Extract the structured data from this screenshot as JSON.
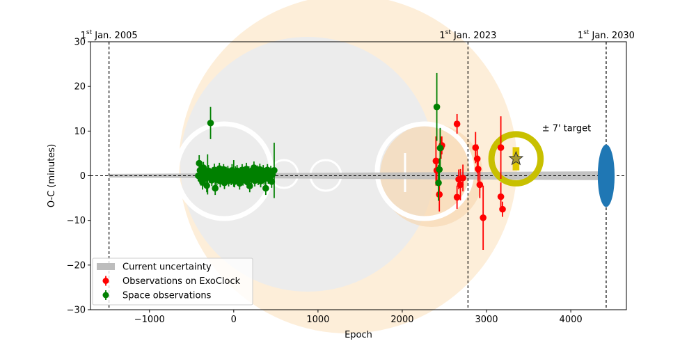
{
  "chart_data": {
    "type": "scatter",
    "xlabel": "Epoch",
    "ylabel": "O-C (minutes)",
    "xlim": [
      -1700,
      4660
    ],
    "ylim": [
      -30,
      30
    ],
    "x_ticks": [
      -1000,
      0,
      1000,
      2000,
      3000,
      4000
    ],
    "x_tick_labels": [
      "−1000",
      "0",
      "1000",
      "2000",
      "3000",
      "4000"
    ],
    "y_ticks": [
      -30,
      -20,
      -10,
      0,
      10,
      20,
      30
    ],
    "y_tick_labels": [
      "−30",
      "−20",
      "−10",
      "0",
      "10",
      "20",
      "30"
    ],
    "date_markers": [
      {
        "epoch": -1480,
        "pre": "1",
        "sup": "st",
        "post": " Jan. 2005"
      },
      {
        "epoch": 2780,
        "pre": "1",
        "sup": "st",
        "post": " Jan. 2023"
      },
      {
        "epoch": 4420,
        "pre": "1",
        "sup": "st",
        "post": " Jan. 2030"
      }
    ],
    "zero_line": true,
    "legend_position": "lower-left",
    "legend": [
      {
        "label": "Current uncertainty",
        "kind": "band",
        "color": "#bdbdbd"
      },
      {
        "label": "Observations on ExoClock",
        "kind": "errorbar",
        "color": "#ff0000"
      },
      {
        "label": "Space observations",
        "kind": "errorbar",
        "color": "#008000"
      }
    ],
    "uncertainty_band": {
      "x": [
        -1480,
        4420
      ],
      "half_width": [
        0.4,
        1.0
      ],
      "color": "#bdbdbd"
    },
    "future_ellipse": {
      "x": 4420,
      "y": 0,
      "half_width_x": 100,
      "half_height_y": 7,
      "color": "#1f77b4"
    },
    "target": {
      "x": 3350,
      "y": 3.8,
      "ring_radius_y": 5.5,
      "label": "± 7' target",
      "ring_color": "#c8c000",
      "star_color": "#a89a2e",
      "rect_half_width_x": 40,
      "rect_half_height_y": 2.6,
      "rect_color": "#e0c800"
    },
    "series": [
      {
        "name": "Observations on ExoClock",
        "color": "#ff0000",
        "points": [
          [
            2400,
            3.3,
            5.5
          ],
          [
            2410,
            1.2,
            2.8
          ],
          [
            2440,
            -4.2,
            3.8
          ],
          [
            2460,
            6.3,
            2.5
          ],
          [
            2470,
            6.8,
            2.0
          ],
          [
            2650,
            11.6,
            2.2
          ],
          [
            2650,
            -4.8,
            2.6
          ],
          [
            2670,
            -0.8,
            2.2
          ],
          [
            2690,
            -2.0,
            3.5
          ],
          [
            2720,
            -0.5,
            3.0
          ],
          [
            2870,
            6.3,
            3.5
          ],
          [
            2890,
            3.8,
            3.2
          ],
          [
            2900,
            1.5,
            2.8
          ],
          [
            2920,
            -2.0,
            3.0
          ],
          [
            2960,
            -9.4,
            7.2
          ],
          [
            3170,
            6.3,
            7.0
          ],
          [
            3170,
            -4.7,
            3.2
          ],
          [
            3190,
            -7.5,
            1.7
          ]
        ]
      },
      {
        "name": "Space observations",
        "color": "#008000",
        "points": [
          [
            -420,
            0.0,
            1.2
          ],
          [
            -410,
            2.8,
            1.8
          ],
          [
            -400,
            1.2,
            1.5
          ],
          [
            -390,
            -0.8,
            1.4
          ],
          [
            -380,
            0.5,
            1.2
          ],
          [
            -370,
            -1.5,
            1.6
          ],
          [
            -360,
            1.8,
            1.3
          ],
          [
            -350,
            0.2,
            1.1
          ],
          [
            -340,
            -0.6,
            1.4
          ],
          [
            -330,
            0.9,
            1.2
          ],
          [
            -320,
            -2.2,
            1.5
          ],
          [
            -310,
            0.3,
            4.5
          ],
          [
            -300,
            1.1,
            1.3
          ],
          [
            -290,
            -0.4,
            1.2
          ],
          [
            -280,
            0.6,
            1.1
          ],
          [
            -275,
            11.8,
            3.6
          ],
          [
            -260,
            -1.0,
            1.3
          ],
          [
            -250,
            0.7,
            1.2
          ],
          [
            -240,
            -0.2,
            1.1
          ],
          [
            -230,
            1.3,
            1.4
          ],
          [
            -220,
            -2.8,
            1.5
          ],
          [
            -210,
            0.4,
            1.2
          ],
          [
            -200,
            -0.9,
            1.3
          ],
          [
            -190,
            0.8,
            1.1
          ],
          [
            -180,
            -0.3,
            1.2
          ],
          [
            -170,
            1.6,
            1.3
          ],
          [
            -160,
            -1.2,
            1.4
          ],
          [
            -150,
            0.1,
            1.1
          ],
          [
            -140,
            0.9,
            1.2
          ],
          [
            -130,
            -0.7,
            1.3
          ],
          [
            -120,
            1.4,
            1.2
          ],
          [
            -110,
            -1.6,
            1.4
          ],
          [
            -100,
            0.3,
            1.1
          ],
          [
            -90,
            0.8,
            1.2
          ],
          [
            -80,
            -0.5,
            1.3
          ],
          [
            -70,
            1.0,
            1.2
          ],
          [
            -60,
            -1.1,
            1.3
          ],
          [
            -50,
            0.2,
            1.1
          ],
          [
            -40,
            0.6,
            1.2
          ],
          [
            -30,
            -0.8,
            1.3
          ],
          [
            -20,
            1.2,
            1.4
          ],
          [
            -10,
            -0.4,
            1.2
          ],
          [
            0,
            0.5,
            3.0
          ],
          [
            10,
            -1.3,
            1.3
          ],
          [
            20,
            0.9,
            1.2
          ],
          [
            30,
            -0.2,
            1.1
          ],
          [
            40,
            1.1,
            1.3
          ],
          [
            50,
            -0.9,
            1.2
          ],
          [
            60,
            0.4,
            1.1
          ],
          [
            70,
            -1.7,
            1.4
          ],
          [
            80,
            0.7,
            1.2
          ],
          [
            90,
            -0.3,
            1.1
          ],
          [
            100,
            1.3,
            1.3
          ],
          [
            110,
            -1.0,
            1.2
          ],
          [
            120,
            0.2,
            1.1
          ],
          [
            130,
            0.8,
            1.2
          ],
          [
            140,
            -0.6,
            1.3
          ],
          [
            150,
            1.5,
            1.4
          ],
          [
            160,
            -1.4,
            1.3
          ],
          [
            170,
            0.1,
            1.1
          ],
          [
            180,
            0.9,
            1.2
          ],
          [
            190,
            -2.3,
            1.4
          ],
          [
            200,
            0.5,
            1.2
          ],
          [
            210,
            -0.7,
            1.3
          ],
          [
            220,
            1.2,
            1.2
          ],
          [
            230,
            -0.1,
            1.1
          ],
          [
            240,
            1.8,
            1.4
          ],
          [
            250,
            -1.1,
            1.3
          ],
          [
            260,
            0.4,
            1.1
          ],
          [
            270,
            -0.5,
            1.2
          ],
          [
            280,
            1.0,
            1.3
          ],
          [
            290,
            -0.9,
            1.2
          ],
          [
            300,
            0.3,
            1.1
          ],
          [
            310,
            1.4,
            1.3
          ],
          [
            320,
            -1.2,
            1.4
          ],
          [
            330,
            0.6,
            1.2
          ],
          [
            340,
            -0.3,
            1.1
          ],
          [
            350,
            1.1,
            1.3
          ],
          [
            360,
            -0.8,
            1.2
          ],
          [
            370,
            0.2,
            1.1
          ],
          [
            380,
            -2.8,
            1.5
          ],
          [
            390,
            0.7,
            1.2
          ],
          [
            400,
            1.3,
            1.3
          ],
          [
            410,
            -0.6,
            1.2
          ],
          [
            420,
            0.4,
            1.1
          ],
          [
            430,
            -0.2,
            1.2
          ],
          [
            440,
            0.9,
            1.3
          ],
          [
            450,
            -1.3,
            1.4
          ],
          [
            460,
            0.3,
            1.1
          ],
          [
            480,
            1.2,
            6.2
          ],
          [
            2410,
            15.4,
            7.6
          ],
          [
            2430,
            -1.6,
            4.0
          ],
          [
            2440,
            1.4,
            2.5
          ],
          [
            2450,
            6.2,
            4.5
          ]
        ]
      }
    ]
  }
}
